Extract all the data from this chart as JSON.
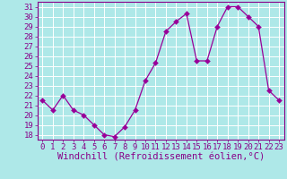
{
  "x": [
    0,
    1,
    2,
    3,
    4,
    5,
    6,
    7,
    8,
    9,
    10,
    11,
    12,
    13,
    14,
    15,
    16,
    17,
    18,
    19,
    20,
    21,
    22,
    23
  ],
  "y": [
    21.5,
    20.5,
    22,
    20.5,
    20,
    19,
    18,
    17.8,
    18.8,
    20.5,
    23.5,
    25.3,
    28.5,
    29.5,
    30.3,
    25.5,
    25.5,
    29,
    31,
    31,
    30,
    29,
    22.5,
    21.5
  ],
  "line_color": "#990099",
  "bg_color": "#aee8e8",
  "grid_color": "#c8d8d8",
  "xlabel": "Windchill (Refroidissement éolien,°C)",
  "xlim": [
    -0.5,
    23.5
  ],
  "ylim": [
    17.5,
    31.5
  ],
  "yticks": [
    18,
    19,
    20,
    21,
    22,
    23,
    24,
    25,
    26,
    27,
    28,
    29,
    30,
    31
  ],
  "xticks": [
    0,
    1,
    2,
    3,
    4,
    5,
    6,
    7,
    8,
    9,
    10,
    11,
    12,
    13,
    14,
    15,
    16,
    17,
    18,
    19,
    20,
    21,
    22,
    23
  ],
  "tick_color": "#880088",
  "font_size": 6.5,
  "xlabel_font_size": 7.5,
  "lw": 0.9,
  "markersize": 3.0
}
